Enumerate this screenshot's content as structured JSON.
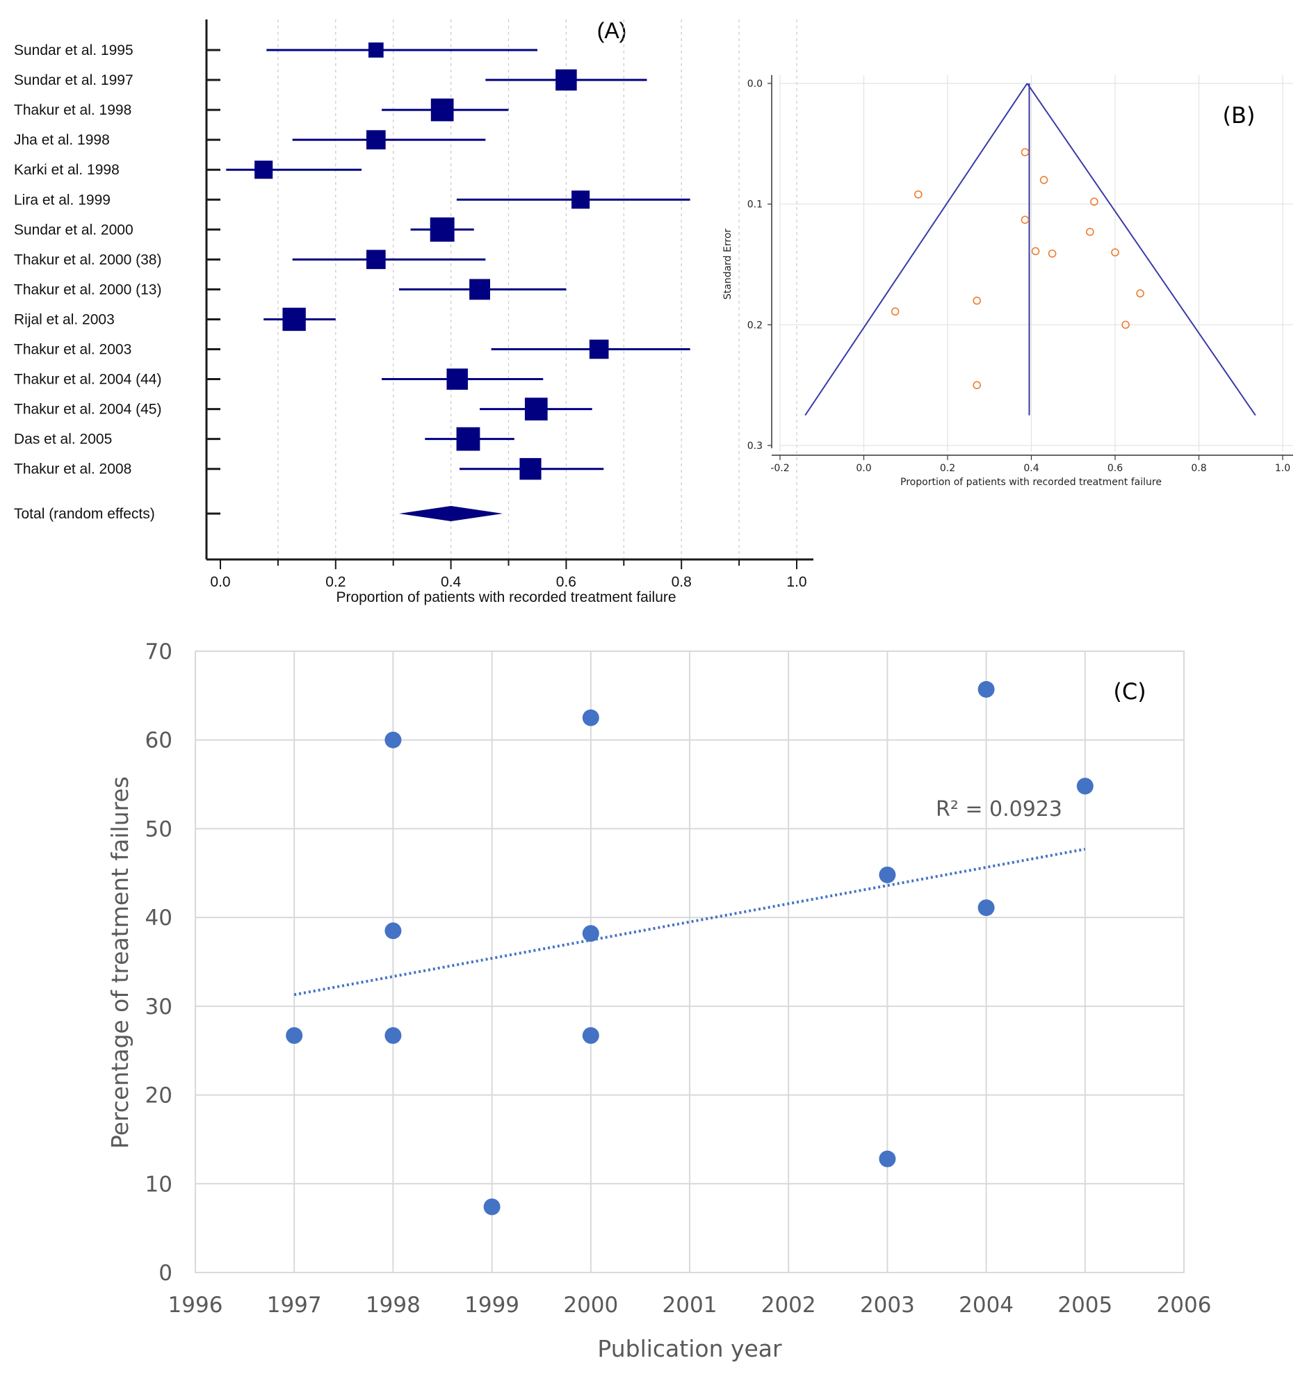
{
  "chart_data": [
    {
      "panel_label": "(A)",
      "type": "forest",
      "xlabel": "Proportion of patients with recorded treatment failure",
      "xlim": [
        0.0,
        1.0
      ],
      "xticks": [
        "0.0",
        "0.2",
        "0.4",
        "0.6",
        "0.8",
        "1.0"
      ],
      "grid": "vertical dashed",
      "series_color": "#000080",
      "studies": [
        {
          "label": "Sundar et al. 1995",
          "est": 0.27,
          "lo": 0.08,
          "hi": 0.55,
          "weight": 0.35
        },
        {
          "label": "Sundar et al. 1997",
          "est": 0.6,
          "lo": 0.46,
          "hi": 0.74,
          "weight": 0.75
        },
        {
          "label": "Thakur et al. 1998",
          "est": 0.385,
          "lo": 0.28,
          "hi": 0.5,
          "weight": 0.85
        },
        {
          "label": "Jha et al. 1998",
          "est": 0.27,
          "lo": 0.125,
          "hi": 0.46,
          "weight": 0.62
        },
        {
          "label": "Karki et al. 1998",
          "est": 0.075,
          "lo": 0.01,
          "hi": 0.245,
          "weight": 0.55
        },
        {
          "label": "Lira et al. 1999",
          "est": 0.625,
          "lo": 0.41,
          "hi": 0.815,
          "weight": 0.55
        },
        {
          "label": "Sundar et al. 2000",
          "est": 0.385,
          "lo": 0.33,
          "hi": 0.44,
          "weight": 0.95
        },
        {
          "label": "Thakur et al. 2000 (38)",
          "est": 0.27,
          "lo": 0.125,
          "hi": 0.46,
          "weight": 0.62
        },
        {
          "label": "Thakur et al. 2000 (13)",
          "est": 0.45,
          "lo": 0.31,
          "hi": 0.6,
          "weight": 0.72
        },
        {
          "label": "Rijal et al. 2003",
          "est": 0.128,
          "lo": 0.075,
          "hi": 0.2,
          "weight": 0.88
        },
        {
          "label": "Thakur et al. 2003",
          "est": 0.657,
          "lo": 0.47,
          "hi": 0.815,
          "weight": 0.62
        },
        {
          "label": "Thakur et al. 2004 (44)",
          "est": 0.411,
          "lo": 0.28,
          "hi": 0.56,
          "weight": 0.75
        },
        {
          "label": "Thakur et al. 2004 (45)",
          "est": 0.548,
          "lo": 0.45,
          "hi": 0.645,
          "weight": 0.85
        },
        {
          "label": "Das et al. 2005",
          "est": 0.43,
          "lo": 0.355,
          "hi": 0.51,
          "weight": 0.9
        },
        {
          "label": "Thakur et al. 2008",
          "est": 0.538,
          "lo": 0.415,
          "hi": 0.665,
          "weight": 0.78
        }
      ],
      "total": {
        "label": "Total (random effects)",
        "est": 0.4,
        "lo": 0.31,
        "hi": 0.49
      }
    },
    {
      "panel_label": "(B)",
      "type": "scatter",
      "subtype": "funnel",
      "xlabel": "Proportion of patients with recorded treatment failure",
      "ylabel": "Standard Error",
      "xlim": [
        -0.2,
        1.0
      ],
      "ylim": [
        0.0,
        0.3
      ],
      "y_reversed": true,
      "xticks": [
        "-0.2",
        "0.0",
        "0.2",
        "0.4",
        "0.6",
        "0.8",
        "1.0"
      ],
      "yticks": [
        "0.0",
        "0.1",
        "0.2",
        "0.3"
      ],
      "grid": true,
      "pooled_estimate": 0.395,
      "funnel_apex": [
        0.39,
        0.0
      ],
      "funnel_left_base": [
        -0.14,
        0.275
      ],
      "funnel_right_base": [
        0.935,
        0.275
      ],
      "pooled_line_ymax": 0.275,
      "point_color": "#ED7D31",
      "line_color": "#3A3AA8",
      "points": [
        {
          "x": 0.385,
          "y": 0.057
        },
        {
          "x": 0.43,
          "y": 0.08
        },
        {
          "x": 0.13,
          "y": 0.092
        },
        {
          "x": 0.55,
          "y": 0.098
        },
        {
          "x": 0.385,
          "y": 0.113
        },
        {
          "x": 0.54,
          "y": 0.123
        },
        {
          "x": 0.41,
          "y": 0.139
        },
        {
          "x": 0.45,
          "y": 0.141
        },
        {
          "x": 0.6,
          "y": 0.14
        },
        {
          "x": 0.66,
          "y": 0.174
        },
        {
          "x": 0.27,
          "y": 0.18
        },
        {
          "x": 0.075,
          "y": 0.189
        },
        {
          "x": 0.625,
          "y": 0.2
        },
        {
          "x": 0.27,
          "y": 0.25
        }
      ]
    },
    {
      "panel_label": "(C)",
      "type": "scatter",
      "xlabel": "Publication year",
      "ylabel": "Percentage of treatment failures",
      "xlim": [
        1996,
        2006
      ],
      "ylim": [
        0,
        70
      ],
      "xticks": [
        "1996",
        "1997",
        "1998",
        "1999",
        "2000",
        "2001",
        "2002",
        "2003",
        "2004",
        "2005",
        "2006"
      ],
      "yticks": [
        "0",
        "10",
        "20",
        "30",
        "40",
        "50",
        "60",
        "70"
      ],
      "grid": true,
      "point_color": "#4472C4",
      "points": [
        {
          "x": 1997,
          "y": 26.7
        },
        {
          "x": 1998,
          "y": 60.0
        },
        {
          "x": 1998,
          "y": 38.5
        },
        {
          "x": 1998,
          "y": 26.7
        },
        {
          "x": 1999,
          "y": 7.4
        },
        {
          "x": 2000,
          "y": 62.5
        },
        {
          "x": 2000,
          "y": 38.2
        },
        {
          "x": 2000,
          "y": 26.7
        },
        {
          "x": 2003,
          "y": 44.8
        },
        {
          "x": 2003,
          "y": 12.8
        },
        {
          "x": 2004,
          "y": 65.7
        },
        {
          "x": 2004,
          "y": 41.1
        },
        {
          "x": 2005,
          "y": 54.8
        }
      ],
      "trendline": {
        "style": "dotted",
        "x": [
          1997,
          2005
        ],
        "y": [
          31.3,
          47.7
        ],
        "annotation": "R² = 0.0923"
      }
    }
  ]
}
